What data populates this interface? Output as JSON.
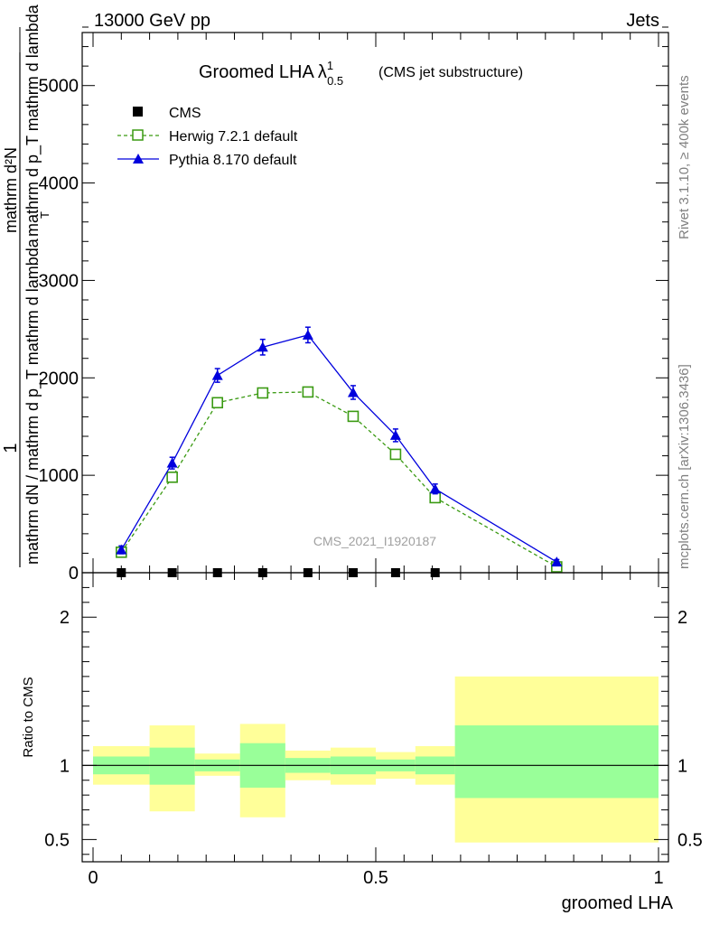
{
  "header": {
    "left": "13000 GeV pp",
    "right": "Jets"
  },
  "side_text": {
    "rivet": "Rivet 3.1.10, ≥ 400k events",
    "mcplots": "mcplots.cern.ch [arXiv:1306.3436]"
  },
  "chart_data": [
    {
      "type": "line",
      "title": "Groomed LHA",
      "title_symbol": "λ",
      "title_sup": "1",
      "title_sub": "0.5",
      "subtitle": "(CMS jet substructure)",
      "ylabel_num": "1",
      "ylabel_frac": "mathrm dN / mathrm d p_T mathrm d lambda",
      "ylabel_top": "mathrm d²N",
      "ylabel_bottom": "mathrm d p_T mathrm d lambda",
      "ylabel_sub": "T",
      "ylim": [
        0,
        5600
      ],
      "yticks": [
        0,
        1000,
        2000,
        3000,
        4000,
        5000
      ],
      "yticklabels": [
        "0",
        "1000",
        "2000",
        "3000",
        "4000",
        "5000"
      ],
      "watermark": "CMS_2021_I1920187",
      "legend_position": "top-left",
      "series": [
        {
          "name": "CMS",
          "marker": "square-filled",
          "color": "#000000",
          "x": [
            0.05,
            0.14,
            0.22,
            0.3,
            0.38,
            0.46,
            0.535,
            0.605
          ],
          "y": [
            0,
            0,
            0,
            0,
            0,
            0,
            0,
            0
          ]
        },
        {
          "name": "Herwig 7.2.1 default",
          "marker": "square-open",
          "color": "#3a9a12",
          "dash": "dashed",
          "x": [
            0.05,
            0.14,
            0.22,
            0.3,
            0.38,
            0.46,
            0.535,
            0.605,
            0.82
          ],
          "y": [
            210,
            980,
            1745,
            1845,
            1855,
            1605,
            1215,
            770,
            60
          ],
          "err": [
            20,
            30,
            30,
            35,
            35,
            30,
            30,
            20,
            10
          ]
        },
        {
          "name": "Pythia 8.170 default",
          "marker": "triangle-filled",
          "color": "#0000dd",
          "dash": "solid",
          "x": [
            0.05,
            0.14,
            0.22,
            0.3,
            0.38,
            0.46,
            0.535,
            0.605,
            0.82
          ],
          "y": [
            235,
            1125,
            2025,
            2315,
            2440,
            1850,
            1410,
            860,
            110
          ],
          "err": [
            40,
            60,
            70,
            80,
            80,
            70,
            65,
            50,
            25
          ]
        }
      ]
    },
    {
      "type": "area",
      "ylabel": "Ratio to CMS",
      "xlabel": "groomed LHA",
      "xlim": [
        0,
        1
      ],
      "ylim": [
        0.35,
        2.3
      ],
      "yticks": [
        0.5,
        1,
        2
      ],
      "yticklabels": [
        "0.5",
        "1",
        "2"
      ],
      "xticks": [
        0,
        0.5,
        1
      ],
      "xticklabels": [
        "0",
        "0.5",
        "1"
      ],
      "reference": 1,
      "bins": [
        {
          "lo": 0.0,
          "hi": 0.1,
          "stat": [
            0.94,
            1.06
          ],
          "total": [
            0.87,
            1.13
          ]
        },
        {
          "lo": 0.1,
          "hi": 0.18,
          "stat": [
            0.87,
            1.12
          ],
          "total": [
            0.69,
            1.27
          ]
        },
        {
          "lo": 0.18,
          "hi": 0.26,
          "stat": [
            0.96,
            1.04
          ],
          "total": [
            0.93,
            1.08
          ]
        },
        {
          "lo": 0.26,
          "hi": 0.34,
          "stat": [
            0.85,
            1.15
          ],
          "total": [
            0.65,
            1.28
          ]
        },
        {
          "lo": 0.34,
          "hi": 0.42,
          "stat": [
            0.95,
            1.05
          ],
          "total": [
            0.9,
            1.1
          ]
        },
        {
          "lo": 0.42,
          "hi": 0.5,
          "stat": [
            0.94,
            1.06
          ],
          "total": [
            0.87,
            1.12
          ]
        },
        {
          "lo": 0.5,
          "hi": 0.57,
          "stat": [
            0.96,
            1.04
          ],
          "total": [
            0.91,
            1.09
          ]
        },
        {
          "lo": 0.57,
          "hi": 0.64,
          "stat": [
            0.94,
            1.06
          ],
          "total": [
            0.87,
            1.13
          ]
        },
        {
          "lo": 0.64,
          "hi": 1.0,
          "stat": [
            0.78,
            1.27
          ],
          "total": [
            0.48,
            1.6
          ]
        }
      ]
    }
  ]
}
